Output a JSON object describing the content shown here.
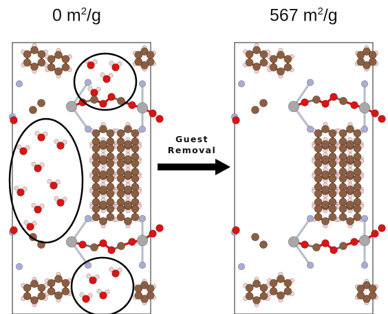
{
  "labels": {
    "left_value": "0 m",
    "left_exp": "2",
    "left_unit": "/g",
    "right_value": "567 m",
    "right_exp": "2",
    "right_unit": "/g"
  },
  "arrow": {
    "line1": "Guest",
    "line2": "Removal"
  },
  "colors": {
    "carbon": "#8b5e42",
    "oxygen": "#d91414",
    "hydrogen": "#f2d2d2",
    "nitrogen": "#a9acd6",
    "metal": "#a8a8a8",
    "bond_metal": "#b8bfcc",
    "frame": "#222222",
    "guest_circle": "#000000"
  },
  "icons": {
    "arrow": "right-arrow-icon",
    "water": "water-molecule-icon"
  }
}
